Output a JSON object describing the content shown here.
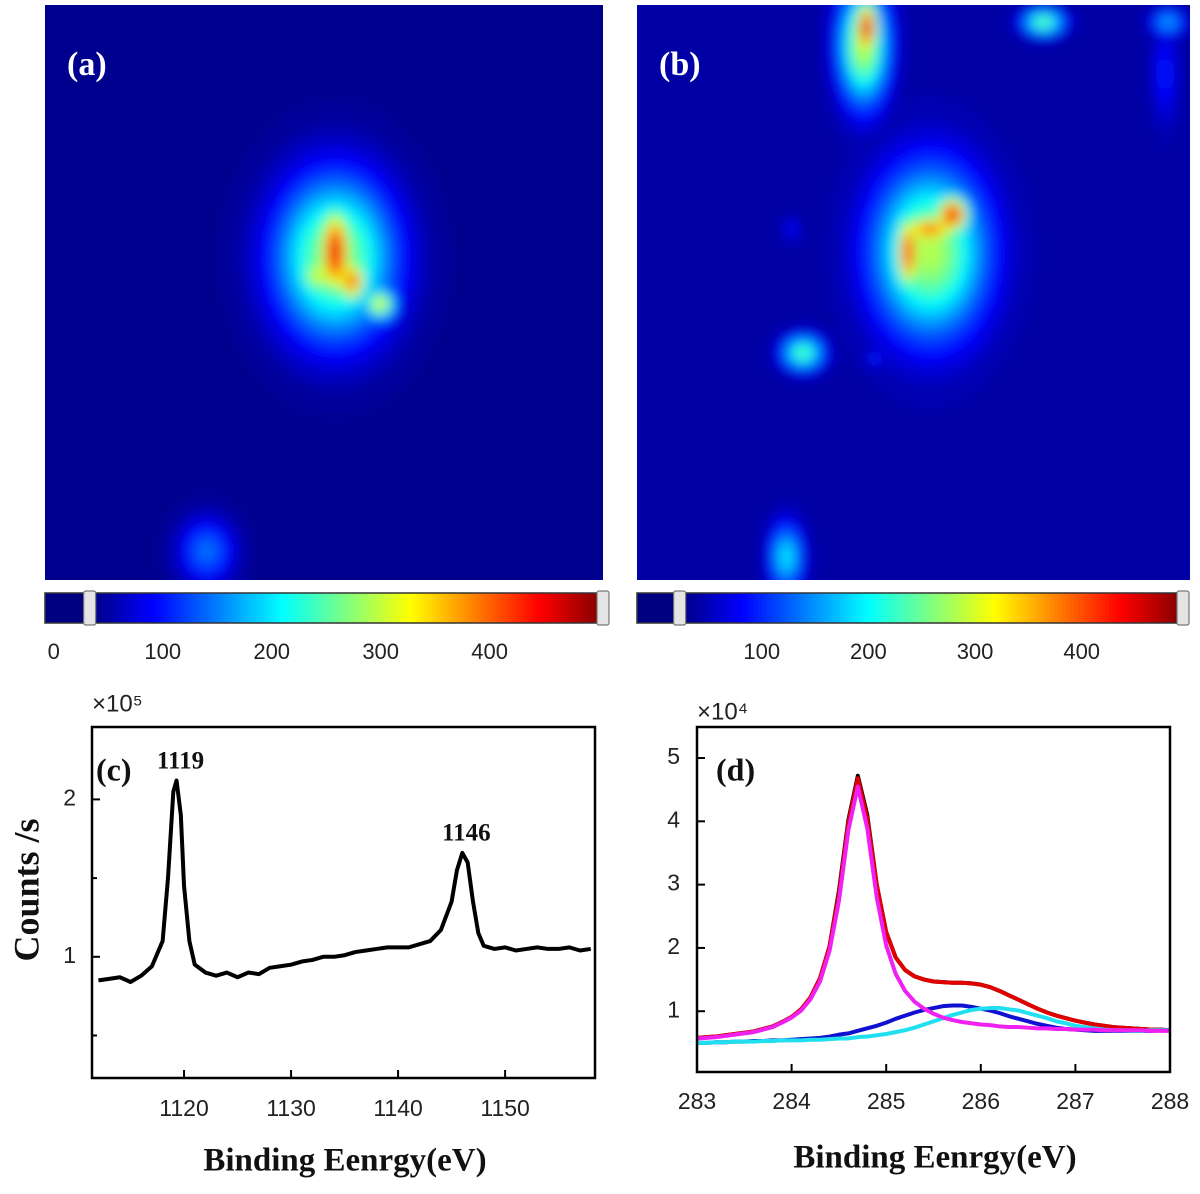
{
  "chart_data": [
    {
      "type": "heatmap",
      "label": "(a)",
      "background": 40,
      "spots": [
        {
          "x": 0.29,
          "y": 0.95,
          "sx": 0.035,
          "sy": 0.04,
          "peak": 150
        },
        {
          "x": 0.52,
          "y": 0.44,
          "sx": 0.075,
          "sy": 0.1,
          "peak": 290
        },
        {
          "x": 0.49,
          "y": 0.47,
          "sx": 0.03,
          "sy": 0.03,
          "peak": 320
        },
        {
          "x": 0.6,
          "y": 0.52,
          "sx": 0.02,
          "sy": 0.02,
          "peak": 330
        },
        {
          "x": 0.52,
          "y": 0.43,
          "sx": 0.022,
          "sy": 0.06,
          "peak": 470
        },
        {
          "x": 0.55,
          "y": 0.48,
          "sx": 0.02,
          "sy": 0.03,
          "peak": 420
        }
      ],
      "colorbar": {
        "clim": [
          -8,
          504
        ],
        "ticks": [
          0,
          100,
          200,
          300,
          400
        ],
        "handles": [
          33,
          504
        ]
      }
    },
    {
      "type": "heatmap",
      "label": "(b)",
      "background": 40,
      "spots": [
        {
          "x": 0.41,
          "y": 0.07,
          "sx": 0.03,
          "sy": 0.07,
          "peak": 300
        },
        {
          "x": 0.415,
          "y": 0.04,
          "sx": 0.015,
          "sy": 0.035,
          "peak": 470
        },
        {
          "x": 0.735,
          "y": 0.03,
          "sx": 0.025,
          "sy": 0.015,
          "peak": 260
        },
        {
          "x": 0.96,
          "y": 0.03,
          "sx": 0.02,
          "sy": 0.015,
          "peak": 170
        },
        {
          "x": 0.955,
          "y": 0.12,
          "sx": 0.015,
          "sy": 0.06,
          "peak": 100
        },
        {
          "x": 0.53,
          "y": 0.43,
          "sx": 0.07,
          "sy": 0.1,
          "peak": 290
        },
        {
          "x": 0.49,
          "y": 0.43,
          "sx": 0.015,
          "sy": 0.05,
          "peak": 440
        },
        {
          "x": 0.57,
          "y": 0.365,
          "sx": 0.022,
          "sy": 0.025,
          "peak": 460
        },
        {
          "x": 0.53,
          "y": 0.39,
          "sx": 0.04,
          "sy": 0.02,
          "peak": 400
        },
        {
          "x": 0.3,
          "y": 0.605,
          "sx": 0.025,
          "sy": 0.02,
          "peak": 250
        },
        {
          "x": 0.43,
          "y": 0.615,
          "sx": 0.01,
          "sy": 0.01,
          "peak": 110
        },
        {
          "x": 0.61,
          "y": 0.59,
          "sx": 0.015,
          "sy": 0.008,
          "peak": 90
        },
        {
          "x": 0.27,
          "y": 0.96,
          "sx": 0.02,
          "sy": 0.04,
          "peak": 200
        },
        {
          "x": 0.28,
          "y": 0.39,
          "sx": 0.01,
          "sy": 0.015,
          "peak": 90
        }
      ],
      "colorbar": {
        "clim": [
          -17,
          495
        ],
        "ticks": [
          100,
          200,
          300,
          400
        ],
        "handles": [
          23,
          495
        ]
      }
    },
    {
      "type": "line",
      "label": "(c)",
      "xlabel": "Binding Eenrgy(eV)",
      "ylabel": "Counts /s",
      "y_multiplier": "×10⁵",
      "xlim": [
        1111.4,
        1158.4
      ],
      "ylim": [
        0.23,
        2.46
      ],
      "xticks": [
        1120,
        1130,
        1140,
        1150
      ],
      "yticks": [
        1,
        2
      ],
      "y_minor_ticks": [
        0.5,
        1.5
      ],
      "x": [
        1112,
        1113,
        1114,
        1115,
        1116,
        1117,
        1118,
        1118.5,
        1119,
        1119.3,
        1119.7,
        1120,
        1120.5,
        1121,
        1122,
        1123,
        1124,
        1125,
        1126,
        1127,
        1128,
        1129,
        1130,
        1131,
        1132,
        1133,
        1134,
        1135,
        1136,
        1137,
        1138,
        1139,
        1140,
        1141,
        1142,
        1143,
        1144,
        1145,
        1145.5,
        1146,
        1146.5,
        1147,
        1147.5,
        1148,
        1149,
        1150,
        1151,
        1152,
        1153,
        1154,
        1155,
        1156,
        1157,
        1158
      ],
      "series": [
        {
          "color": "#000000",
          "values": [
            0.85,
            0.86,
            0.87,
            0.84,
            0.88,
            0.94,
            1.1,
            1.5,
            2.05,
            2.12,
            1.9,
            1.45,
            1.1,
            0.95,
            0.9,
            0.88,
            0.9,
            0.87,
            0.9,
            0.89,
            0.93,
            0.94,
            0.95,
            0.97,
            0.98,
            1.0,
            1.0,
            1.01,
            1.03,
            1.04,
            1.05,
            1.06,
            1.06,
            1.06,
            1.08,
            1.1,
            1.17,
            1.35,
            1.55,
            1.66,
            1.6,
            1.35,
            1.15,
            1.07,
            1.05,
            1.06,
            1.04,
            1.05,
            1.06,
            1.05,
            1.05,
            1.06,
            1.04,
            1.05
          ]
        }
      ],
      "annotations": [
        {
          "text": "1119",
          "x": 1119.3,
          "y": 2.12
        },
        {
          "text": "1146",
          "x": 1146,
          "y": 1.66
        }
      ]
    },
    {
      "type": "line",
      "label": "(d)",
      "xlabel": "Binding Eenrgy(eV)",
      "y_multiplier": "×10⁴",
      "xlim": [
        283,
        288
      ],
      "ylim": [
        0.04,
        5.49
      ],
      "xticks": [
        283,
        284,
        285,
        286,
        287,
        288
      ],
      "yticks": [
        1,
        2,
        3,
        4,
        5
      ],
      "x": [
        283,
        283.1,
        283.2,
        283.3,
        283.4,
        283.5,
        283.6,
        283.7,
        283.8,
        283.9,
        284,
        284.1,
        284.2,
        284.3,
        284.4,
        284.5,
        284.6,
        284.7,
        284.8,
        284.9,
        285,
        285.1,
        285.2,
        285.3,
        285.4,
        285.5,
        285.6,
        285.7,
        285.8,
        285.9,
        286,
        286.1,
        286.2,
        286.3,
        286.4,
        286.5,
        286.6,
        286.7,
        286.8,
        286.9,
        287,
        287.1,
        287.2,
        287.3,
        287.4,
        287.5,
        287.6,
        287.7,
        287.8,
        287.9,
        288
      ],
      "series": [
        {
          "color": "#000000",
          "values": [
            0.58,
            0.59,
            0.6,
            0.62,
            0.64,
            0.66,
            0.68,
            0.72,
            0.76,
            0.83,
            0.91,
            1.03,
            1.22,
            1.52,
            2.02,
            2.9,
            4.02,
            4.72,
            4.1,
            3.0,
            2.25,
            1.85,
            1.65,
            1.55,
            1.5,
            1.47,
            1.46,
            1.45,
            1.45,
            1.44,
            1.42,
            1.38,
            1.32,
            1.25,
            1.18,
            1.11,
            1.04,
            0.98,
            0.93,
            0.89,
            0.85,
            0.82,
            0.79,
            0.77,
            0.75,
            0.74,
            0.73,
            0.72,
            0.71,
            0.71,
            0.7
          ]
        },
        {
          "color": "#e00000",
          "values": [
            0.58,
            0.59,
            0.6,
            0.62,
            0.64,
            0.66,
            0.68,
            0.72,
            0.76,
            0.83,
            0.91,
            1.03,
            1.22,
            1.52,
            2.02,
            2.85,
            3.98,
            4.68,
            4.05,
            3.0,
            2.25,
            1.85,
            1.65,
            1.55,
            1.5,
            1.47,
            1.46,
            1.45,
            1.45,
            1.44,
            1.42,
            1.38,
            1.32,
            1.25,
            1.18,
            1.11,
            1.04,
            0.98,
            0.93,
            0.89,
            0.85,
            0.82,
            0.79,
            0.77,
            0.75,
            0.74,
            0.73,
            0.72,
            0.71,
            0.71,
            0.7
          ]
        },
        {
          "color": "#1010d0",
          "values": [
            0.5,
            0.5,
            0.51,
            0.51,
            0.52,
            0.52,
            0.53,
            0.53,
            0.54,
            0.54,
            0.55,
            0.56,
            0.57,
            0.58,
            0.6,
            0.63,
            0.65,
            0.69,
            0.73,
            0.77,
            0.82,
            0.88,
            0.93,
            0.98,
            1.02,
            1.05,
            1.08,
            1.09,
            1.09,
            1.07,
            1.04,
            1.01,
            0.97,
            0.92,
            0.88,
            0.84,
            0.8,
            0.77,
            0.74,
            0.72,
            0.71,
            0.7,
            0.69,
            0.69,
            0.69,
            0.69,
            0.69,
            0.69,
            0.69,
            0.7,
            0.7
          ]
        },
        {
          "color": "#20e0f0",
          "values": [
            0.5,
            0.5,
            0.51,
            0.51,
            0.52,
            0.52,
            0.52,
            0.53,
            0.53,
            0.54,
            0.54,
            0.54,
            0.55,
            0.55,
            0.56,
            0.57,
            0.57,
            0.59,
            0.6,
            0.62,
            0.64,
            0.67,
            0.7,
            0.74,
            0.79,
            0.84,
            0.89,
            0.94,
            0.98,
            1.02,
            1.04,
            1.05,
            1.05,
            1.03,
            1.01,
            0.97,
            0.93,
            0.89,
            0.84,
            0.81,
            0.77,
            0.75,
            0.73,
            0.71,
            0.7,
            0.7,
            0.69,
            0.69,
            0.7,
            0.7,
            0.7
          ]
        },
        {
          "color": "#f020f0",
          "values": [
            0.57,
            0.58,
            0.59,
            0.61,
            0.63,
            0.65,
            0.67,
            0.71,
            0.75,
            0.82,
            0.9,
            1.01,
            1.19,
            1.47,
            1.95,
            2.74,
            3.86,
            4.55,
            3.89,
            2.8,
            2.04,
            1.59,
            1.32,
            1.15,
            1.04,
            0.96,
            0.9,
            0.86,
            0.83,
            0.81,
            0.79,
            0.78,
            0.76,
            0.75,
            0.75,
            0.74,
            0.73,
            0.73,
            0.72,
            0.72,
            0.71,
            0.71,
            0.71,
            0.7,
            0.7,
            0.7,
            0.7,
            0.7,
            0.69,
            0.69,
            0.69
          ]
        }
      ]
    }
  ]
}
